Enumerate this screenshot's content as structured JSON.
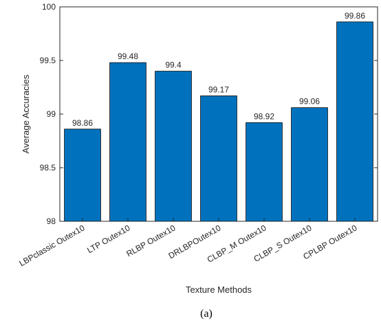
{
  "chart_data": {
    "type": "bar",
    "title": "",
    "xlabel": "Texture Methods",
    "ylabel": "Average Accuracies",
    "categories": [
      "LBPclassic Outex10",
      "LTP Outex10",
      "RLBP Outex10",
      "DRLBPOutex10",
      "CLBP_M Outex10",
      "CLBP_S Outex10",
      "CPLBP Outex10"
    ],
    "values": [
      98.86,
      99.48,
      99.4,
      99.17,
      98.92,
      99.06,
      99.86
    ],
    "value_labels": [
      "98.86",
      "99.48",
      "99.4",
      "99.17",
      "98.92",
      "99.06",
      "99.86"
    ],
    "ylim": [
      98,
      100
    ],
    "yticks": [
      98,
      98.5,
      99,
      99.5,
      100
    ],
    "ytick_labels": [
      "98",
      "98.5",
      "99",
      "99.5",
      "100"
    ],
    "grid": false,
    "bar_color": "#0072BD",
    "caption": "(a)"
  }
}
